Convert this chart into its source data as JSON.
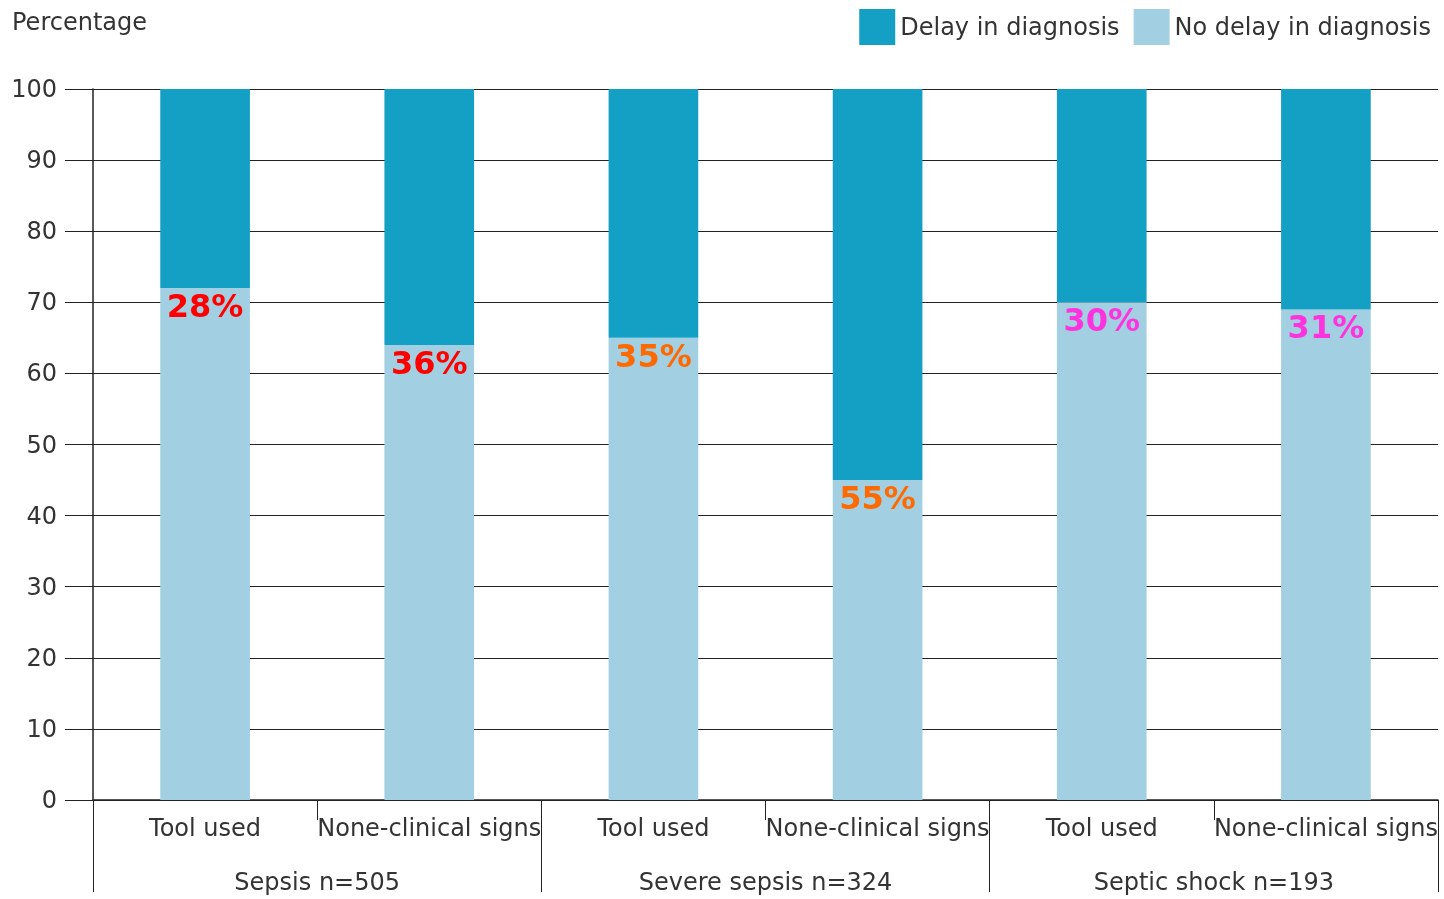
{
  "chart_data": {
    "type": "bar",
    "ylabel": "Percentage",
    "categories": [
      "Tool used",
      "None-clinical signs",
      "Tool used",
      "None-clinical signs",
      "Tool used",
      "None-clinical signs"
    ],
    "annotations": [
      "Sepsis n=505",
      "Severe sepsis n=324",
      "Septic shock n=193"
    ],
    "stacked": true,
    "ylim": [
      0,
      100
    ],
    "yticks": [
      0,
      10,
      20,
      30,
      40,
      50,
      60,
      70,
      80,
      90,
      100
    ],
    "grid": "y",
    "legend": "top right",
    "series": [
      {
        "name": "No delay in diagnosis",
        "color": "#a2d0e2",
        "values": [
          72,
          64,
          65,
          45,
          70,
          69
        ]
      },
      {
        "name": "Delay in diagnosis",
        "color": "#14a0c4",
        "values": [
          28,
          36,
          35,
          55,
          30,
          31
        ],
        "value_labels": [
          "28%",
          "36%",
          "35%",
          "55%",
          "30%",
          "31%"
        ]
      }
    ]
  }
}
